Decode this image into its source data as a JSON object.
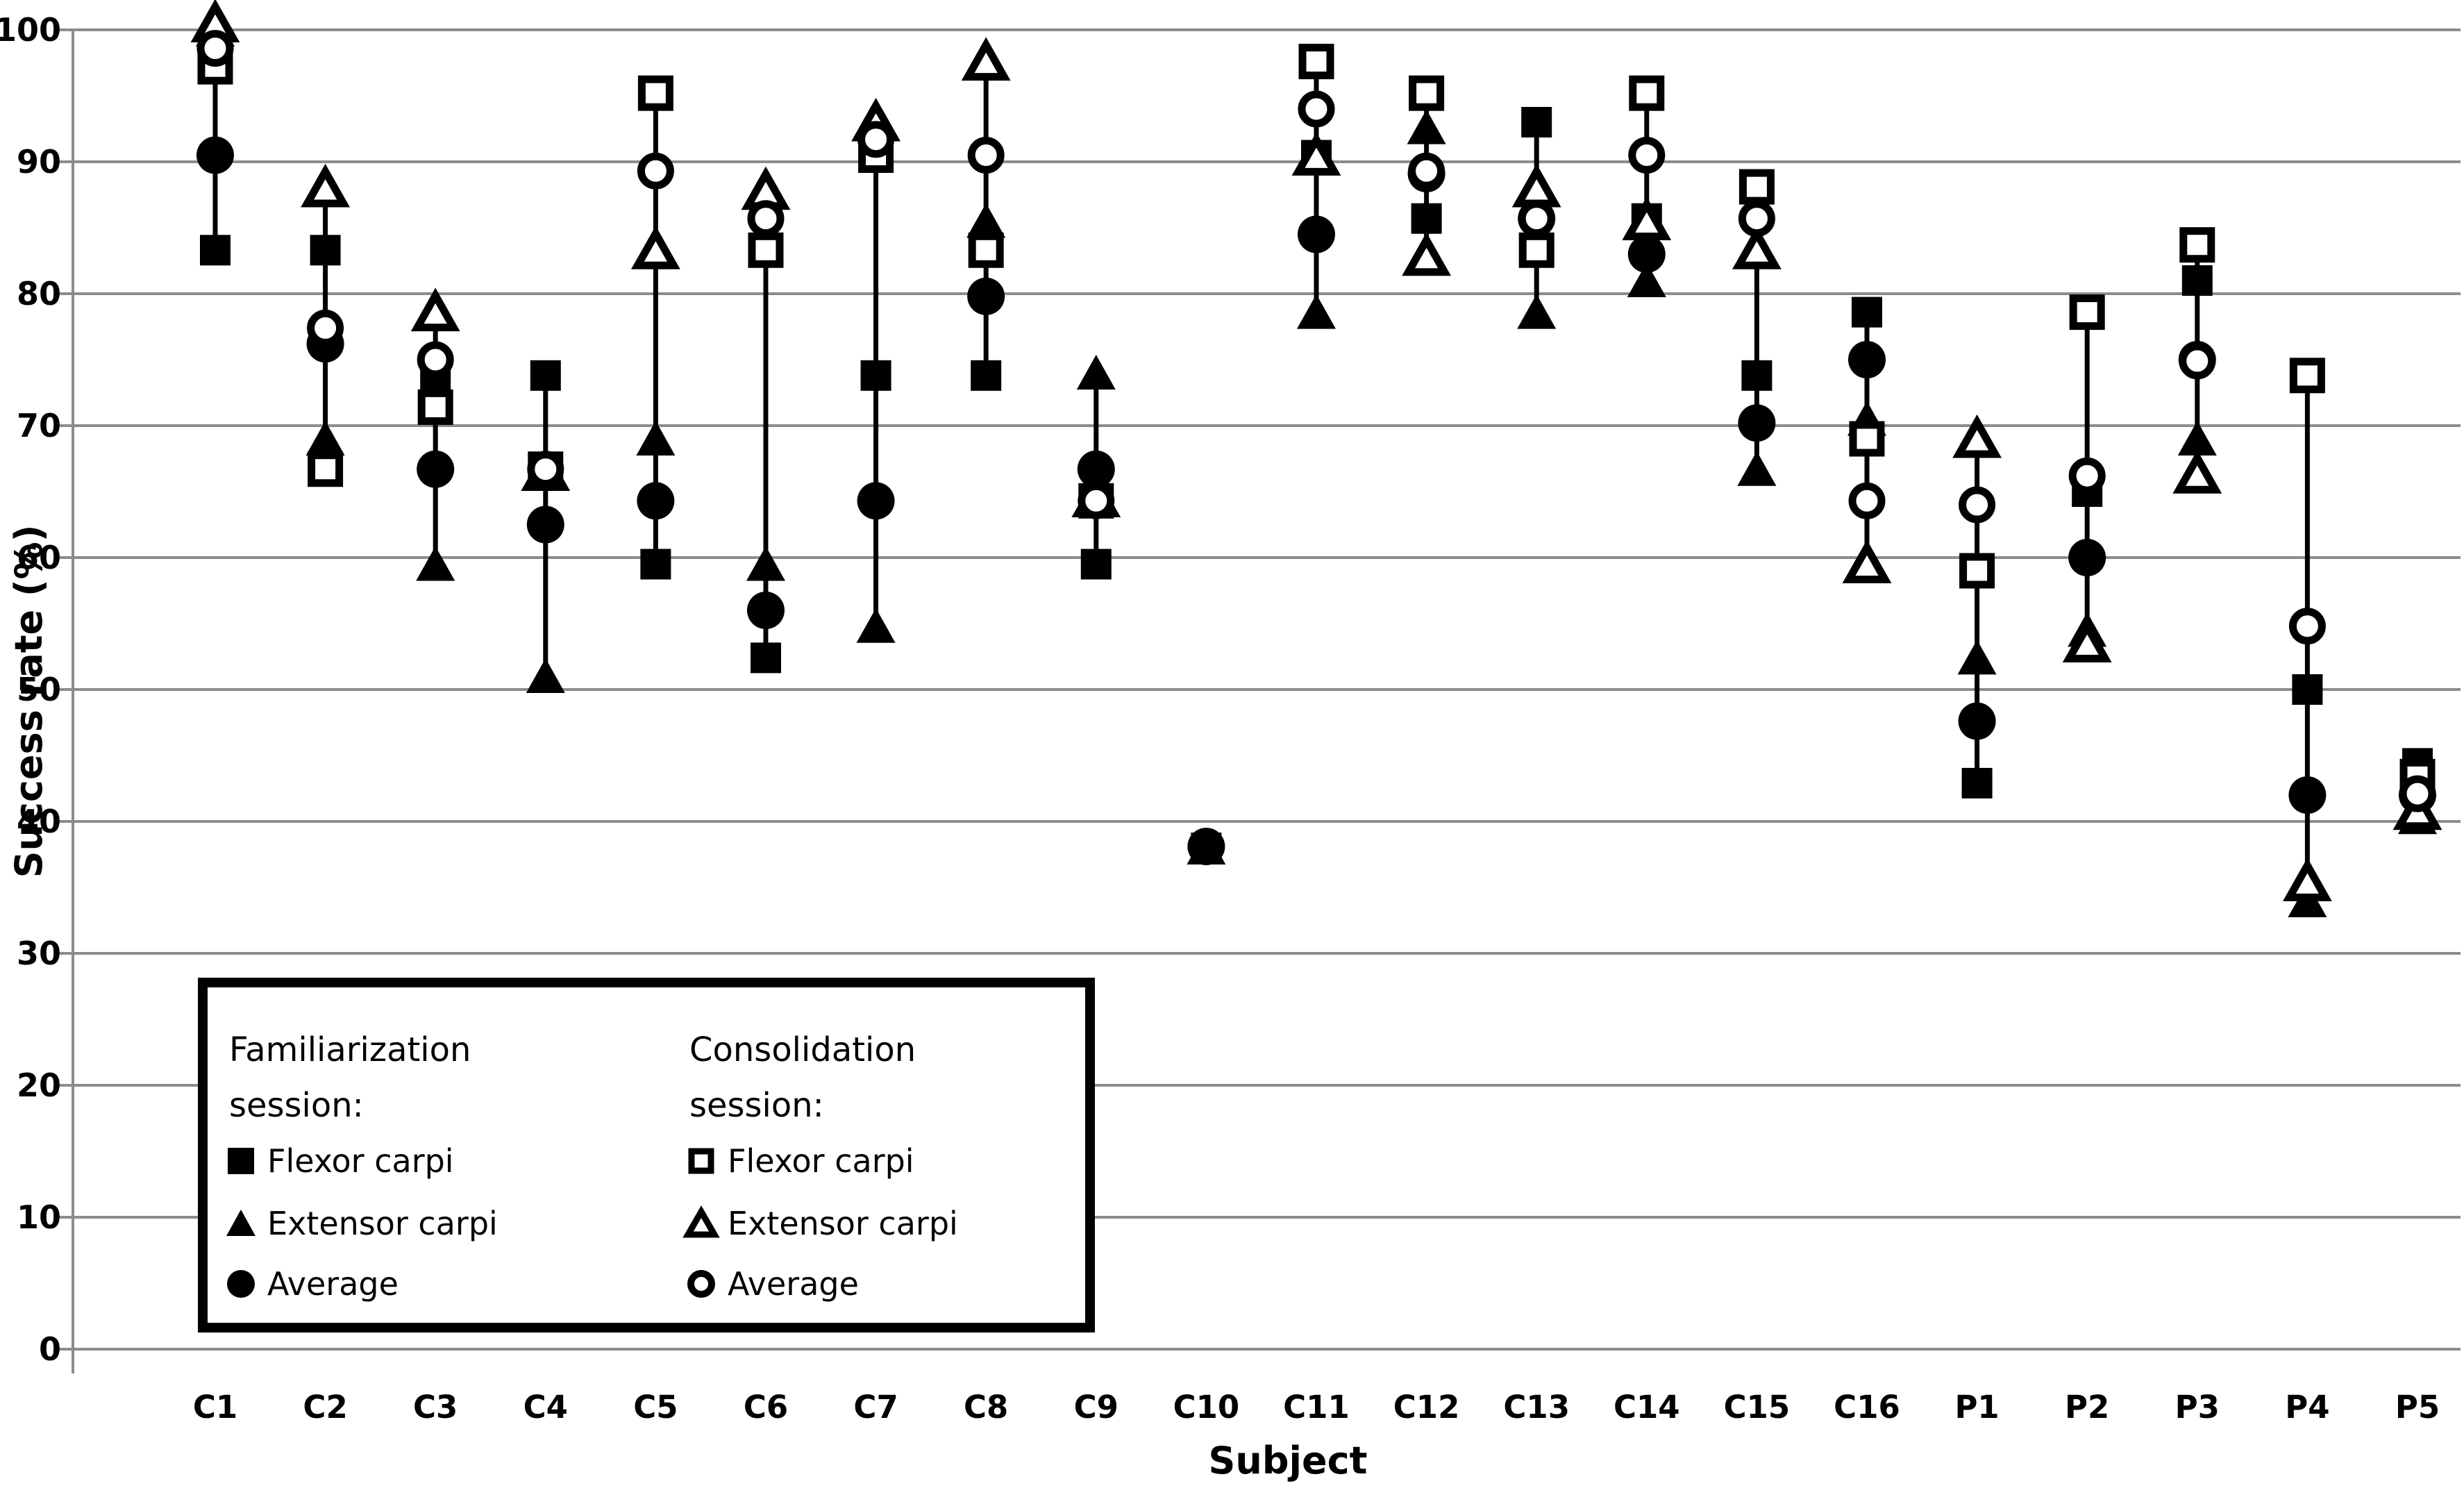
{
  "chart_data": {
    "type": "scatter",
    "title": "",
    "xlabel": "Subject",
    "ylabel": "Success rate (%)",
    "ylim": [
      0,
      100
    ],
    "yticks": [
      0,
      10,
      20,
      30,
      40,
      50,
      60,
      70,
      80,
      90,
      100
    ],
    "grid": "horizontal",
    "legend_position": "inside bottom-left",
    "categories": [
      "C1",
      "C2",
      "C3",
      "C4",
      "C5",
      "C6",
      "C7",
      "C8",
      "C9",
      "C10",
      "C11",
      "C12",
      "C13",
      "C14",
      "C15",
      "C16",
      "P1",
      "P2",
      "P3",
      "P4",
      "P5"
    ],
    "series": [
      {
        "name": "Familiarization session: Flexor carpi",
        "marker": "filled-square",
        "values": [
          83.3,
          83.3,
          73.5,
          73.8,
          59.5,
          52.4,
          73.8,
          73.8,
          59.5,
          38.0,
          90.5,
          85.7,
          93.0,
          85.7,
          73.8,
          78.6,
          42.9,
          65.0,
          81.0,
          50.0,
          44.4
        ]
      },
      {
        "name": "Familiarization session: Extensor carpi",
        "marker": "filled-triangle",
        "values": [
          100.0,
          69.0,
          59.5,
          51.0,
          69.0,
          59.5,
          54.8,
          85.5,
          74.0,
          38.0,
          78.6,
          92.6,
          78.6,
          81.0,
          66.7,
          70.5,
          52.4,
          54.5,
          69.0,
          34.0,
          40.3
        ]
      },
      {
        "name": "Familiarization session: Average",
        "marker": "filled-circle",
        "values": [
          90.5,
          76.2,
          66.7,
          62.5,
          64.3,
          56.0,
          64.3,
          79.8,
          66.7,
          38.1,
          84.5,
          89.1,
          85.7,
          83.0,
          70.2,
          75.0,
          47.6,
          60.0,
          75.0,
          42.0,
          42.0
        ]
      },
      {
        "name": "Consolidation session: Flexor carpi",
        "marker": "open-square",
        "values": [
          97.2,
          66.7,
          71.4,
          66.7,
          95.2,
          83.3,
          90.5,
          83.3,
          64.3,
          null,
          97.6,
          95.2,
          83.3,
          95.2,
          88.1,
          69.0,
          59.0,
          78.6,
          83.7,
          73.8,
          43.4
        ]
      },
      {
        "name": "Consolidation session: Extensor carpi",
        "marker": "open-triangle",
        "values": [
          100.5,
          88.0,
          78.6,
          66.5,
          83.3,
          87.8,
          93.0,
          97.6,
          64.5,
          null,
          90.4,
          82.8,
          88.0,
          85.5,
          83.3,
          59.5,
          69.0,
          53.5,
          66.3,
          35.4,
          40.8
        ]
      },
      {
        "name": "Consolidation session: Average",
        "marker": "open-circle",
        "values": [
          98.6,
          77.4,
          75.0,
          66.7,
          89.3,
          85.7,
          91.7,
          90.5,
          64.3,
          null,
          94.0,
          89.3,
          85.7,
          90.5,
          85.7,
          64.3,
          64.0,
          66.2,
          74.9,
          54.8,
          42.1
        ]
      }
    ]
  },
  "axes": {
    "y_title": "Success rate (%)",
    "x_title": "Subject",
    "y_tick_labels": [
      "100",
      "90",
      "80",
      "70",
      "60",
      "50",
      "40",
      "30",
      "20",
      "10",
      "0"
    ]
  },
  "legend": {
    "groups": [
      {
        "title_line1": "Familiarization",
        "title_line2": "session:",
        "items": [
          {
            "marker": "filled-square",
            "label": "Flexor carpi"
          },
          {
            "marker": "filled-triangle",
            "label": "Extensor carpi"
          },
          {
            "marker": "filled-circle",
            "label": "Average"
          }
        ]
      },
      {
        "title_line1": "Consolidation",
        "title_line2": "session:",
        "items": [
          {
            "marker": "open-square",
            "label": "Flexor carpi"
          },
          {
            "marker": "open-triangle",
            "label": "Extensor carpi"
          },
          {
            "marker": "open-circle",
            "label": "Average"
          }
        ]
      }
    ]
  },
  "colors": {
    "marker": "#000000",
    "open_marker_fill": "#ffffff",
    "grid": "#8c8c8c",
    "axis": "#8c8c8c",
    "legend_border": "#000000",
    "background": "#ffffff",
    "text": "#000000"
  }
}
